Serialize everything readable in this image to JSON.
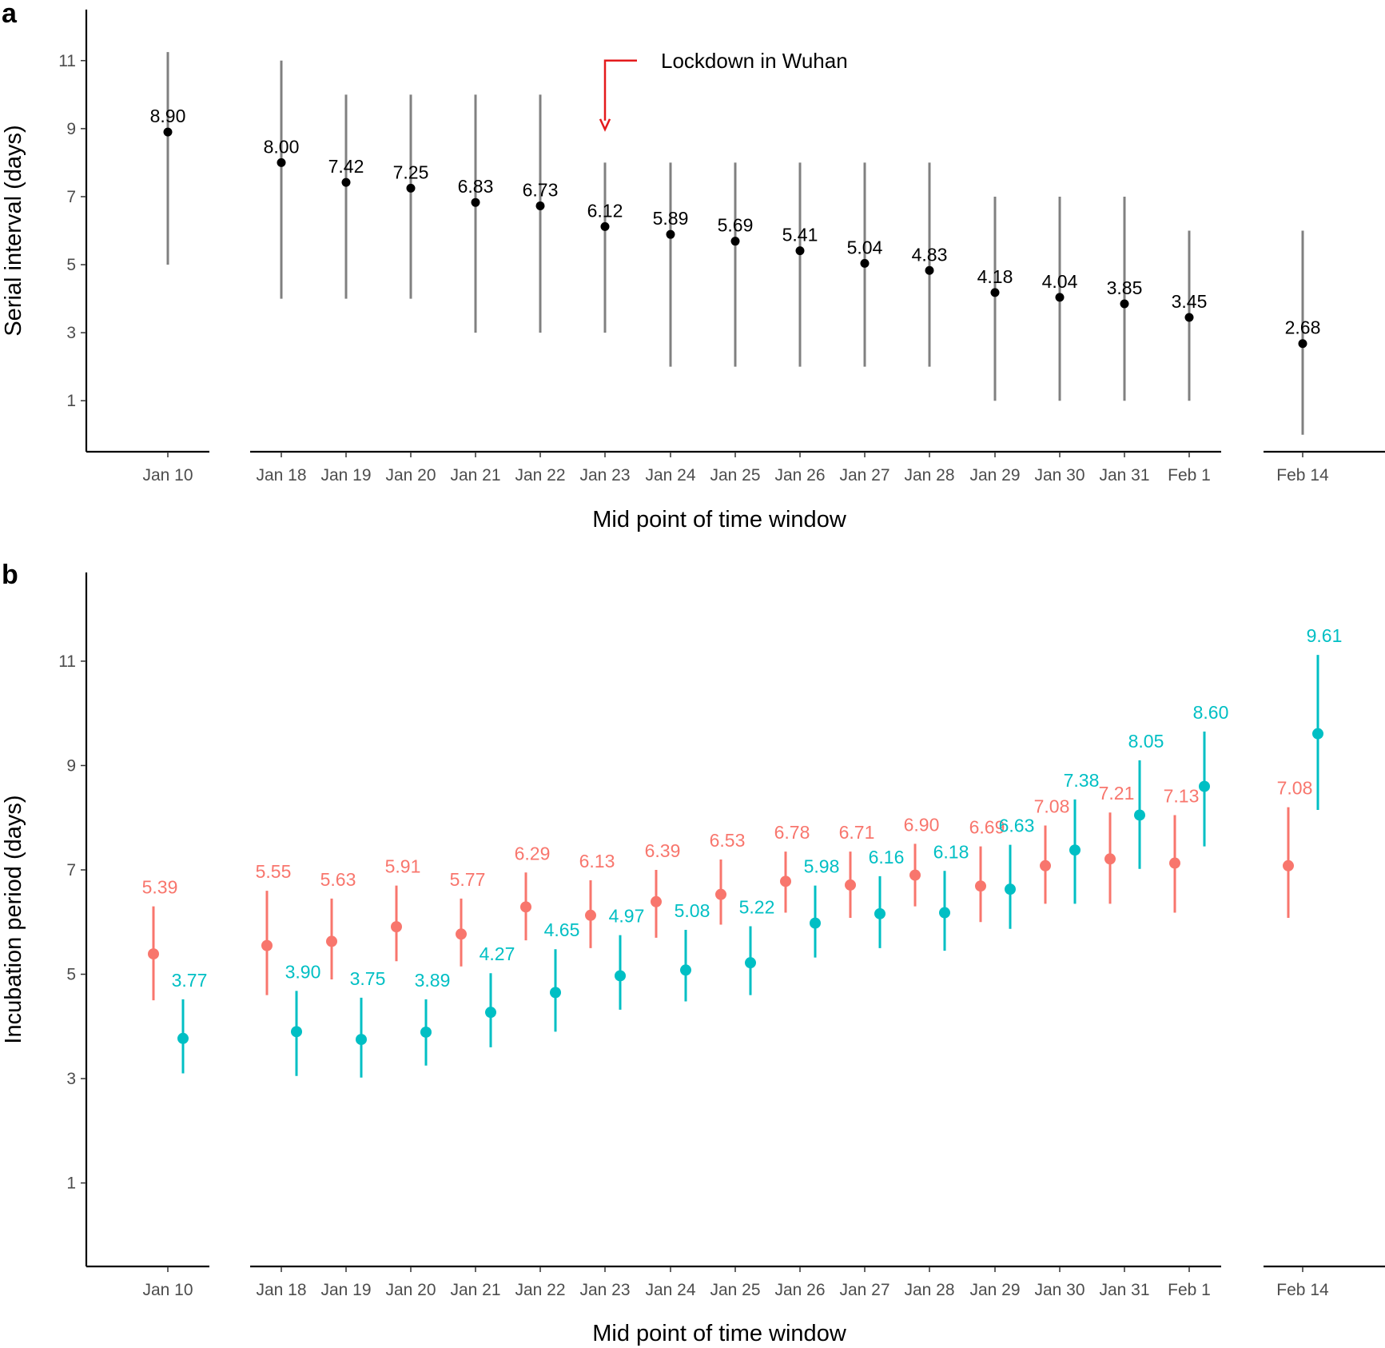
{
  "chart_data": [
    {
      "panel": "a",
      "type": "errorbar",
      "ylabel": "Serial interval (days)",
      "xlabel": "Mid point of time window",
      "ylim": [
        -0.5,
        12.5
      ],
      "yticks": [
        1,
        3,
        5,
        7,
        9,
        11
      ],
      "annotation": "Lockdown in Wuhan",
      "colors": {
        "point": "#000000",
        "bar": "#808080",
        "arrow": "#e41a1c"
      },
      "categories": [
        "Jan 10",
        "Jan 18",
        "Jan 19",
        "Jan 20",
        "Jan 21",
        "Jan 22",
        "Jan 23",
        "Jan 24",
        "Jan 25",
        "Jan 26",
        "Jan 27",
        "Jan 28",
        "Jan 29",
        "Jan 30",
        "Jan 31",
        "Feb 1",
        "Feb 14"
      ],
      "values": [
        8.9,
        8.0,
        7.42,
        7.25,
        6.83,
        6.73,
        6.12,
        5.89,
        5.69,
        5.41,
        5.04,
        4.83,
        4.18,
        4.04,
        3.85,
        3.45,
        2.68
      ],
      "labels": [
        "8.90",
        "8.00",
        "7.42",
        "7.25",
        "6.83",
        "6.73",
        "6.12",
        "5.89",
        "5.69",
        "5.41",
        "5.04",
        "4.83",
        "4.18",
        "4.04",
        "3.85",
        "3.45",
        "2.68"
      ],
      "lower": [
        5,
        4,
        4,
        4,
        3,
        3,
        3,
        2,
        2,
        2,
        2,
        2,
        1,
        1,
        1,
        1,
        0
      ],
      "upper": [
        11.25,
        11,
        10,
        10,
        10,
        10,
        8,
        8,
        8,
        8,
        8,
        8,
        7,
        7,
        7,
        6,
        6
      ]
    },
    {
      "panel": "b",
      "type": "errorbar",
      "ylabel": "Incubation period (days)",
      "xlabel": "Mid point of time window",
      "ylim": [
        -0.6,
        12.7
      ],
      "yticks": [
        1,
        3,
        5,
        7,
        9,
        11
      ],
      "categories": [
        "Jan 10",
        "Jan 18",
        "Jan 19",
        "Jan 20",
        "Jan 21",
        "Jan 22",
        "Jan 23",
        "Jan 24",
        "Jan 25",
        "Jan 26",
        "Jan 27",
        "Jan 28",
        "Jan 29",
        "Jan 30",
        "Jan 31",
        "Feb 1",
        "Feb 14"
      ],
      "series": [
        {
          "name": "series-red",
          "color": "#f8766d",
          "values": [
            5.39,
            5.55,
            5.63,
            5.91,
            5.77,
            6.29,
            6.13,
            6.39,
            6.53,
            6.78,
            6.71,
            6.9,
            6.69,
            7.08,
            7.21,
            7.13,
            7.08
          ],
          "labels": [
            "5.39",
            "5.55",
            "5.63",
            "5.91",
            "5.77",
            "6.29",
            "6.13",
            "6.39",
            "6.53",
            "6.78",
            "6.71",
            "6.90",
            "6.69",
            "7.08",
            "7.21",
            "7.13",
            "7.08"
          ],
          "lower": [
            4.5,
            4.6,
            4.9,
            5.25,
            5.15,
            5.65,
            5.5,
            5.7,
            5.95,
            6.18,
            6.08,
            6.3,
            6.0,
            6.35,
            6.35,
            6.18,
            6.08
          ],
          "upper": [
            6.3,
            6.6,
            6.45,
            6.7,
            6.45,
            6.95,
            6.8,
            7.0,
            7.2,
            7.35,
            7.35,
            7.5,
            7.45,
            7.85,
            8.1,
            8.05,
            8.2
          ]
        },
        {
          "name": "series-teal",
          "color": "#00bfc4",
          "values": [
            3.77,
            3.9,
            3.75,
            3.89,
            4.27,
            4.65,
            4.97,
            5.08,
            5.22,
            5.98,
            6.16,
            6.18,
            6.63,
            7.38,
            8.05,
            8.6,
            9.61
          ],
          "labels": [
            "3.77",
            "3.90",
            "3.75",
            "3.89",
            "4.27",
            "4.65",
            "4.97",
            "5.08",
            "5.22",
            "5.98",
            "6.16",
            "6.18",
            "6.63",
            "7.38",
            "8.05",
            "8.60",
            "9.61"
          ],
          "lower": [
            3.1,
            3.05,
            3.02,
            3.25,
            3.6,
            3.9,
            4.32,
            4.48,
            4.6,
            5.32,
            5.5,
            5.45,
            5.87,
            6.35,
            7.02,
            7.45,
            8.15
          ],
          "upper": [
            4.52,
            4.68,
            4.55,
            4.52,
            5.02,
            5.48,
            5.75,
            5.85,
            5.92,
            6.7,
            6.88,
            6.98,
            7.48,
            8.35,
            9.1,
            9.65,
            11.12
          ]
        }
      ]
    }
  ]
}
